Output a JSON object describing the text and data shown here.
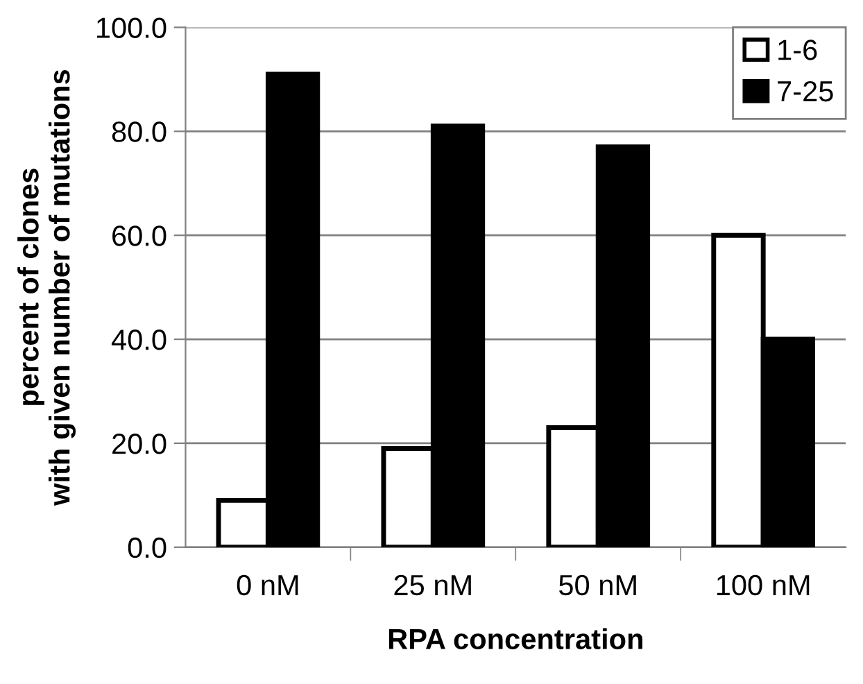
{
  "chart_data": {
    "type": "bar",
    "xlabel": "RPA concentration",
    "ylabel": "percent of clones\nwith given number of mutations",
    "categories": [
      "0 nM",
      "25 nM",
      "50 nM",
      "100 nM"
    ],
    "series": [
      {
        "name": "1-6",
        "color": "#ffffff",
        "values": [
          9,
          19,
          23,
          60
        ]
      },
      {
        "name": "7-25",
        "color": "#000000",
        "values": [
          91,
          81,
          77,
          40
        ]
      }
    ],
    "ylim": [
      0,
      100
    ],
    "yticks": [
      {
        "value": 0,
        "label": "0.0"
      },
      {
        "value": 20,
        "label": "20.0"
      },
      {
        "value": 40,
        "label": "40.0"
      },
      {
        "value": 60,
        "label": "60.0"
      },
      {
        "value": 80,
        "label": "80.0"
      },
      {
        "value": 100,
        "label": "100.0"
      }
    ],
    "grid": "y",
    "legend": "top right"
  }
}
